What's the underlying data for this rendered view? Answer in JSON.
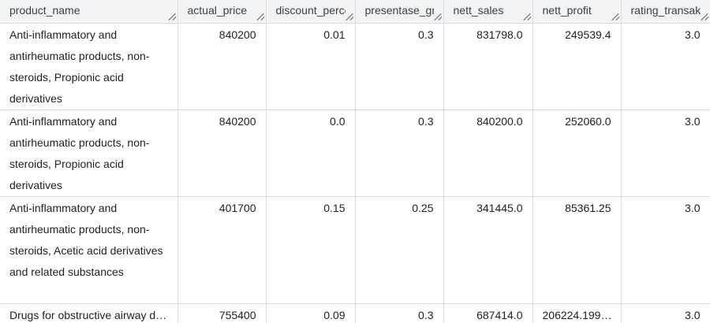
{
  "columns": [
    {
      "label": "product_name"
    },
    {
      "label": "actual_price"
    },
    {
      "label": "discount_percen"
    },
    {
      "label": "presentase_gros"
    },
    {
      "label": "nett_sales"
    },
    {
      "label": "nett_profit"
    },
    {
      "label": "rating_transaksi"
    }
  ],
  "rows": [
    {
      "product_name": "Anti-inflammatory and antirheumatic products, non-steroids, Propionic acid derivatives",
      "actual_price": "840200",
      "discount_percentage": "0.01",
      "presentase_gross_laba": "0.3",
      "nett_sales": "831798.0",
      "nett_profit": "249539.4",
      "rating_transaksi": "3.0"
    },
    {
      "product_name": "Anti-inflammatory and antirheumatic products, non-steroids, Propionic acid derivatives",
      "actual_price": "840200",
      "discount_percentage": "0.0",
      "presentase_gross_laba": "0.3",
      "nett_sales": "840200.0",
      "nett_profit": "252060.0",
      "rating_transaksi": "3.0"
    },
    {
      "product_name": "Anti-inflammatory and antirheumatic products, non-steroids, Acetic acid derivatives and related substances",
      "actual_price": "401700",
      "discount_percentage": "0.15",
      "presentase_gross_laba": "0.25",
      "nett_sales": "341445.0",
      "nett_profit": "85361.25",
      "rating_transaksi": "3.0"
    },
    {
      "product_name": "Drugs for obstructive airway di…",
      "actual_price": "755400",
      "discount_percentage": "0.09",
      "presentase_gross_laba": "0.3",
      "nett_sales": "687414.0",
      "nett_profit": "206224.199…",
      "rating_transaksi": "3.0"
    }
  ],
  "icons": {
    "column_resize": "resize-handle-icon"
  },
  "colors": {
    "header_bg": "#f1f3f4",
    "border": "#dadce0",
    "text": "#202124"
  }
}
